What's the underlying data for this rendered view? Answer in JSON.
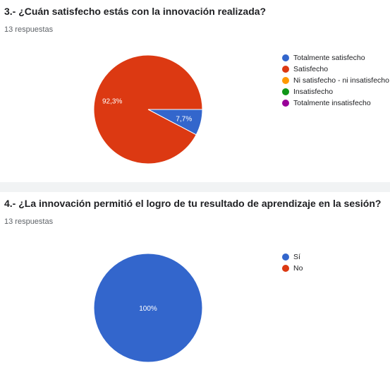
{
  "chart_data": [
    {
      "type": "pie",
      "title": "3.- ¿Cuán satisfecho estás con la innovación realizada?",
      "subtitle": "13 respuestas",
      "legend_position": "right",
      "slices": [
        {
          "label": "Totalmente satisfecho",
          "value": 7.7,
          "display": "7,7%",
          "color": "#3366cc"
        },
        {
          "label": "Satisfecho",
          "value": 92.3,
          "display": "92,3%",
          "color": "#dc3912"
        },
        {
          "label": "Ni satisfecho - ni insatisfecho",
          "value": 0,
          "display": "",
          "color": "#ff9900"
        },
        {
          "label": "Insatisfecho",
          "value": 0,
          "display": "",
          "color": "#109618"
        },
        {
          "label": "Totalmente insatisfecho",
          "value": 0,
          "display": "",
          "color": "#990099"
        }
      ]
    },
    {
      "type": "pie",
      "title": "4.- ¿La innovación permitió el logro de tu resultado de aprendizaje en la sesión?",
      "subtitle": "13 respuestas",
      "legend_position": "right",
      "slices": [
        {
          "label": "Sí",
          "value": 100,
          "display": "100%",
          "color": "#3366cc"
        },
        {
          "label": "No",
          "value": 0,
          "display": "",
          "color": "#dc3912"
        }
      ]
    }
  ]
}
